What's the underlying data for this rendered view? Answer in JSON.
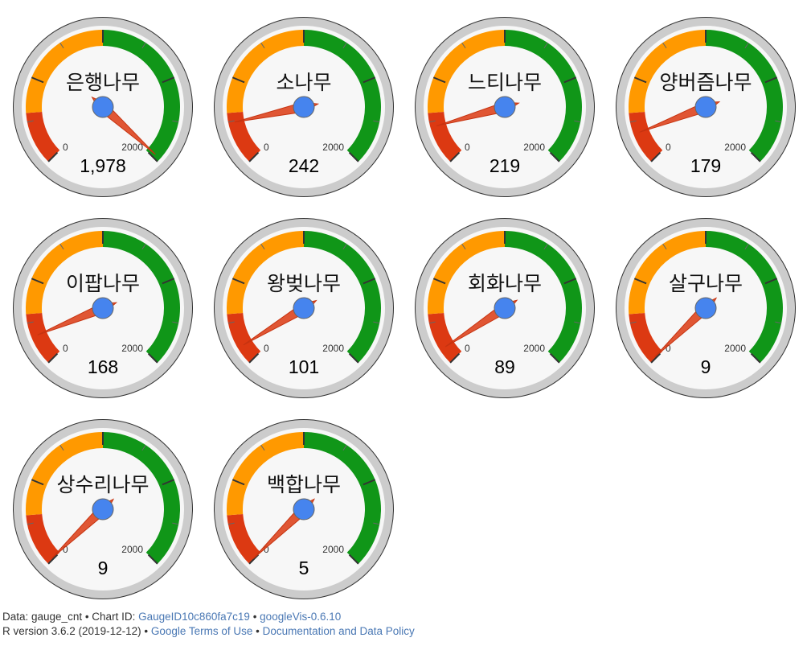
{
  "chart_data": {
    "type": "gauge",
    "min": 0,
    "max": 2000,
    "min_label": "0",
    "max_label": "2000",
    "bands": [
      {
        "name": "red",
        "from": 0,
        "to": 300,
        "color": "#dc3912"
      },
      {
        "name": "yellow",
        "from": 300,
        "to": 1000,
        "color": "#ff9900"
      },
      {
        "name": "green",
        "from": 1000,
        "to": 2000,
        "color": "#109618"
      }
    ],
    "gauges": [
      {
        "label": "은행나무",
        "value": 1978,
        "value_text": "1,978"
      },
      {
        "label": "소나무",
        "value": 242,
        "value_text": "242"
      },
      {
        "label": "느티나무",
        "value": 219,
        "value_text": "219"
      },
      {
        "label": "양버즘나무",
        "value": 179,
        "value_text": "179"
      },
      {
        "label": "이팝나무",
        "value": 168,
        "value_text": "168"
      },
      {
        "label": "왕벚나무",
        "value": 101,
        "value_text": "101"
      },
      {
        "label": "회화나무",
        "value": 89,
        "value_text": "89"
      },
      {
        "label": "살구나무",
        "value": 9,
        "value_text": "9"
      },
      {
        "label": "상수리나무",
        "value": 9,
        "value_text": "9"
      },
      {
        "label": "백합나무",
        "value": 5,
        "value_text": "5"
      }
    ]
  },
  "colors": {
    "needle": "#dc3912",
    "hub": "#4684ee",
    "face": "#f7f7f7",
    "rim": "#cccccc",
    "link": "#4a78b4"
  },
  "footer": {
    "data_label": "Data: gauge_cnt • Chart ID: ",
    "chart_id": "GaugeID10c860fa7c19",
    "sep1": " • ",
    "googlevis": "googleVis-0.6.10",
    "r_version": "R version 3.6.2 (2019-12-12) • ",
    "terms": "Google Terms of Use",
    "sep2": " • ",
    "policy": "Documentation and Data Policy"
  }
}
